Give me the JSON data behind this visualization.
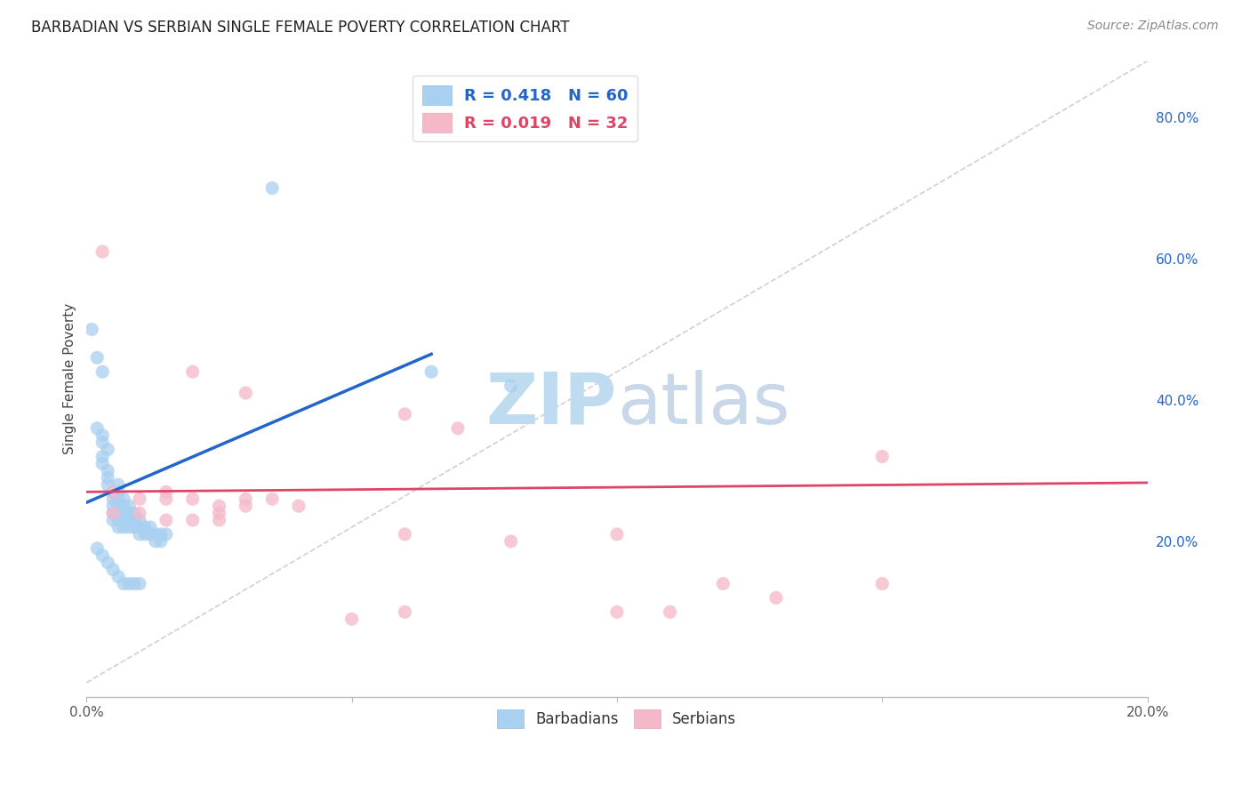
{
  "title": "BARBADIAN VS SERBIAN SINGLE FEMALE POVERTY CORRELATION CHART",
  "source": "Source: ZipAtlas.com",
  "ylabel": "Single Female Poverty",
  "xlabel": "",
  "legend_bottom": [
    "Barbadians",
    "Serbians"
  ],
  "barbadian_R": 0.418,
  "barbadian_N": 60,
  "serbian_R": 0.019,
  "serbian_N": 32,
  "xlim": [
    0.0,
    0.2
  ],
  "ylim": [
    -0.02,
    0.88
  ],
  "x_ticks": [
    0.0,
    0.05,
    0.1,
    0.15,
    0.2
  ],
  "x_tick_labels": [
    "0.0%",
    "",
    "",
    "",
    "20.0%"
  ],
  "y_ticks_right": [
    0.2,
    0.4,
    0.6,
    0.8
  ],
  "y_tick_labels_right": [
    "20.0%",
    "40.0%",
    "60.0%",
    "80.0%"
  ],
  "barbadian_color": "#A8D0F0",
  "serbian_color": "#F5B8C8",
  "trend_blue_color": "#2266CC",
  "trend_pink_color": "#DD4466",
  "diagonal_color": "#C8C8C8",
  "watermark_color": "#D8EDF8",
  "background_color": "#FFFFFF",
  "barbadian_points": [
    [
      0.001,
      0.5
    ],
    [
      0.002,
      0.46
    ],
    [
      0.003,
      0.44
    ],
    [
      0.002,
      0.36
    ],
    [
      0.003,
      0.35
    ],
    [
      0.003,
      0.34
    ],
    [
      0.004,
      0.33
    ],
    [
      0.003,
      0.32
    ],
    [
      0.003,
      0.31
    ],
    [
      0.004,
      0.3
    ],
    [
      0.004,
      0.29
    ],
    [
      0.004,
      0.28
    ],
    [
      0.005,
      0.27
    ],
    [
      0.005,
      0.26
    ],
    [
      0.005,
      0.25
    ],
    [
      0.005,
      0.24
    ],
    [
      0.005,
      0.23
    ],
    [
      0.006,
      0.28
    ],
    [
      0.006,
      0.27
    ],
    [
      0.006,
      0.26
    ],
    [
      0.006,
      0.25
    ],
    [
      0.006,
      0.24
    ],
    [
      0.006,
      0.23
    ],
    [
      0.006,
      0.22
    ],
    [
      0.007,
      0.26
    ],
    [
      0.007,
      0.25
    ],
    [
      0.007,
      0.24
    ],
    [
      0.007,
      0.23
    ],
    [
      0.007,
      0.22
    ],
    [
      0.008,
      0.25
    ],
    [
      0.008,
      0.24
    ],
    [
      0.008,
      0.23
    ],
    [
      0.008,
      0.22
    ],
    [
      0.009,
      0.24
    ],
    [
      0.009,
      0.23
    ],
    [
      0.009,
      0.22
    ],
    [
      0.01,
      0.23
    ],
    [
      0.01,
      0.22
    ],
    [
      0.01,
      0.21
    ],
    [
      0.011,
      0.22
    ],
    [
      0.011,
      0.21
    ],
    [
      0.012,
      0.22
    ],
    [
      0.012,
      0.21
    ],
    [
      0.013,
      0.21
    ],
    [
      0.013,
      0.2
    ],
    [
      0.014,
      0.21
    ],
    [
      0.014,
      0.2
    ],
    [
      0.015,
      0.21
    ],
    [
      0.002,
      0.19
    ],
    [
      0.003,
      0.18
    ],
    [
      0.004,
      0.17
    ],
    [
      0.005,
      0.16
    ],
    [
      0.006,
      0.15
    ],
    [
      0.007,
      0.14
    ],
    [
      0.008,
      0.14
    ],
    [
      0.009,
      0.14
    ],
    [
      0.01,
      0.14
    ],
    [
      0.035,
      0.7
    ],
    [
      0.065,
      0.44
    ],
    [
      0.08,
      0.42
    ]
  ],
  "serbian_points": [
    [
      0.003,
      0.61
    ],
    [
      0.02,
      0.44
    ],
    [
      0.03,
      0.41
    ],
    [
      0.06,
      0.38
    ],
    [
      0.07,
      0.36
    ],
    [
      0.005,
      0.27
    ],
    [
      0.01,
      0.26
    ],
    [
      0.015,
      0.27
    ],
    [
      0.015,
      0.26
    ],
    [
      0.02,
      0.26
    ],
    [
      0.025,
      0.25
    ],
    [
      0.025,
      0.24
    ],
    [
      0.03,
      0.26
    ],
    [
      0.03,
      0.25
    ],
    [
      0.035,
      0.26
    ],
    [
      0.04,
      0.25
    ],
    [
      0.005,
      0.24
    ],
    [
      0.01,
      0.24
    ],
    [
      0.015,
      0.23
    ],
    [
      0.02,
      0.23
    ],
    [
      0.025,
      0.23
    ],
    [
      0.15,
      0.32
    ],
    [
      0.1,
      0.21
    ],
    [
      0.12,
      0.14
    ],
    [
      0.13,
      0.12
    ],
    [
      0.06,
      0.21
    ],
    [
      0.08,
      0.2
    ],
    [
      0.06,
      0.1
    ],
    [
      0.1,
      0.1
    ],
    [
      0.11,
      0.1
    ],
    [
      0.05,
      0.09
    ],
    [
      0.15,
      0.14
    ]
  ],
  "trend_blue_line": [
    [
      0.0,
      0.255
    ],
    [
      0.065,
      0.465
    ]
  ],
  "trend_pink_line": [
    [
      0.0,
      0.27
    ],
    [
      0.2,
      0.283
    ]
  ]
}
